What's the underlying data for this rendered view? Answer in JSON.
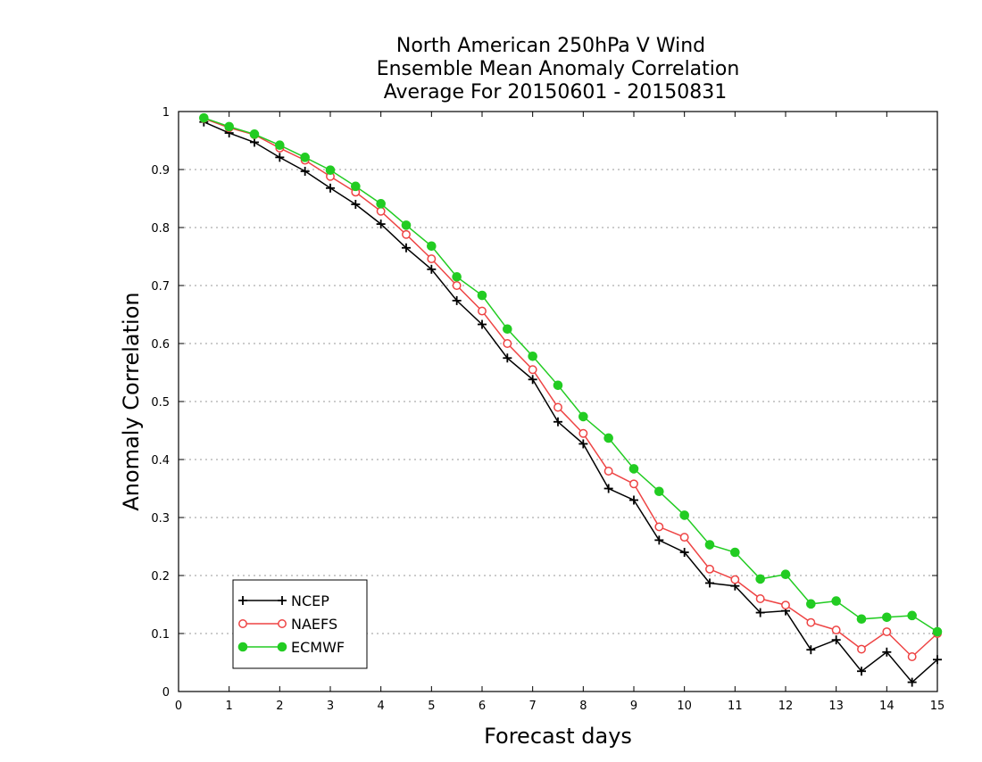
{
  "chart_data": {
    "type": "line",
    "title": [
      "North American 250hPa V Wind",
      "Ensemble Mean Anomaly Correlation",
      "Average For 20150601 - 20150831"
    ],
    "xlabel": "Forecast days",
    "ylabel": "Anomaly Correlation",
    "xlim": [
      0,
      15
    ],
    "ylim": [
      0,
      1
    ],
    "xticks": [
      "0",
      "1",
      "2",
      "3",
      "4",
      "5",
      "6",
      "7",
      "8",
      "9",
      "10",
      "11",
      "12",
      "13",
      "14",
      "15"
    ],
    "yticks": [
      "0",
      "0.1",
      "0.2",
      "0.3",
      "0.4",
      "0.5",
      "0.6",
      "0.7",
      "0.8",
      "0.9",
      "1"
    ],
    "grid": "horizontal dotted",
    "legend_position": "bottom-left",
    "x": [
      0.5,
      1,
      1.5,
      2,
      2.5,
      3,
      3.5,
      4,
      4.5,
      5,
      5.5,
      6,
      6.5,
      7,
      7.5,
      8,
      8.5,
      9,
      9.5,
      10,
      10.5,
      11,
      11.5,
      12,
      12.5,
      13,
      13.5,
      14,
      14.5,
      15
    ],
    "series": [
      {
        "name": "NCEP",
        "color": "#000000",
        "marker": "plus",
        "values": [
          0.982,
          0.963,
          0.947,
          0.921,
          0.897,
          0.868,
          0.84,
          0.806,
          0.765,
          0.728,
          0.674,
          0.633,
          0.575,
          0.538,
          0.465,
          0.427,
          0.35,
          0.33,
          0.261,
          0.24,
          0.187,
          0.182,
          0.136,
          0.139,
          0.072,
          0.089,
          0.035,
          0.068,
          0.016,
          0.055
        ]
      },
      {
        "name": "NAEFS",
        "color": "#ee4444",
        "marker": "open-circle",
        "values": [
          0.988,
          0.972,
          0.96,
          0.937,
          0.916,
          0.888,
          0.861,
          0.828,
          0.788,
          0.746,
          0.7,
          0.656,
          0.6,
          0.555,
          0.49,
          0.445,
          0.38,
          0.358,
          0.284,
          0.266,
          0.211,
          0.193,
          0.16,
          0.149,
          0.119,
          0.106,
          0.073,
          0.103,
          0.06,
          0.1
        ]
      },
      {
        "name": "ECMWF",
        "color": "#22cc22",
        "marker": "filled-circle",
        "values": [
          0.989,
          0.974,
          0.961,
          0.942,
          0.921,
          0.899,
          0.871,
          0.841,
          0.804,
          0.768,
          0.715,
          0.683,
          0.625,
          0.578,
          0.528,
          0.474,
          0.437,
          0.384,
          0.345,
          0.304,
          0.253,
          0.24,
          0.194,
          0.202,
          0.151,
          0.156,
          0.125,
          0.128,
          0.131,
          0.103
        ]
      }
    ]
  }
}
